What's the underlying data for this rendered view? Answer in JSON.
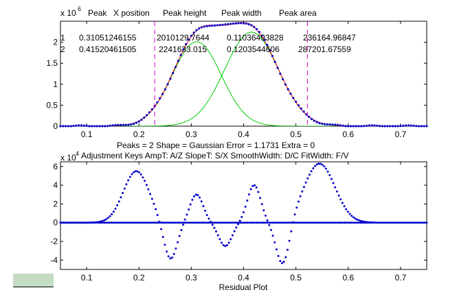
{
  "chart_data": [
    {
      "type": "line",
      "title": "",
      "xlabel": "",
      "ylabel": "",
      "xlim": [
        0.05,
        0.75
      ],
      "ylim": [
        0,
        2500000
      ],
      "x_ticks": [
        "0.1",
        "0.2",
        "0.3",
        "0.4",
        "0.5",
        "0.6",
        "0.7"
      ],
      "y_ticks": [
        "0",
        "0.5",
        "1",
        "1.5",
        "2"
      ],
      "y_exponent": "x 10",
      "y_exponent_power": "6",
      "table_header": [
        "Peak",
        "X position",
        "Peak height",
        "Peak width",
        "Peak area"
      ],
      "table_rows": [
        [
          "1",
          "0.31051246155",
          "2010129.7644",
          "0.11036493828",
          "236164.96847"
        ],
        [
          "2",
          "0.41520461505",
          "2241633.015",
          "0.1203544606",
          "287201.67559"
        ]
      ],
      "status_line": "Peaks = 2     Shape = Gaussian     Error = 1.1731     Extra = 0",
      "fit_window_bounds": [
        0.23,
        0.522
      ],
      "series": [
        {
          "color": "#0000cc",
          "style": "dots",
          "values": []
        },
        {
          "color": "#ff0000",
          "style": "line",
          "values": []
        },
        {
          "color": "#00cc00",
          "style": "line",
          "values": []
        },
        {
          "color": "#00cc00",
          "style": "line",
          "values": []
        }
      ],
      "peaks": [
        {
          "position": 0.31051246155,
          "height": 2010129.7644,
          "width": 0.11036493828
        },
        {
          "position": 0.41520461505,
          "height": 2241633.015,
          "width": 0.1203544606
        }
      ],
      "colors": {
        "data": "#0000cc",
        "fit": "#ff0000",
        "component": "#00cc00",
        "bounds": "#cc00cc"
      }
    },
    {
      "type": "scatter",
      "title": "Adjustment Keys   AmpT: A/Z     SlopeT: S/X    SmoothWidth: D/C     FitWidth: F/V",
      "xlabel": "Residual Plot",
      "ylabel": "",
      "xlim": [
        0.05,
        0.75
      ],
      "ylim": [
        -5,
        6.5
      ],
      "x_ticks": [
        "0.1",
        "0.2",
        "0.3",
        "0.4",
        "0.5",
        "0.6",
        "0.7"
      ],
      "y_ticks": [
        "-4",
        "-2",
        "0",
        "2",
        "4",
        "6"
      ],
      "y_exponent": "x 10",
      "y_exponent_power": "4",
      "residual_extrema": [
        {
          "x": 0.195,
          "y": 5.5
        },
        {
          "x": 0.26,
          "y": -4
        },
        {
          "x": 0.31,
          "y": 3
        },
        {
          "x": 0.365,
          "y": -2.5
        },
        {
          "x": 0.42,
          "y": 4
        },
        {
          "x": 0.475,
          "y": -4.7
        },
        {
          "x": 0.545,
          "y": 6.3
        }
      ],
      "zero_line_range": [
        0.05,
        0.65
      ],
      "colors": {
        "points": "#0000cc"
      }
    }
  ]
}
